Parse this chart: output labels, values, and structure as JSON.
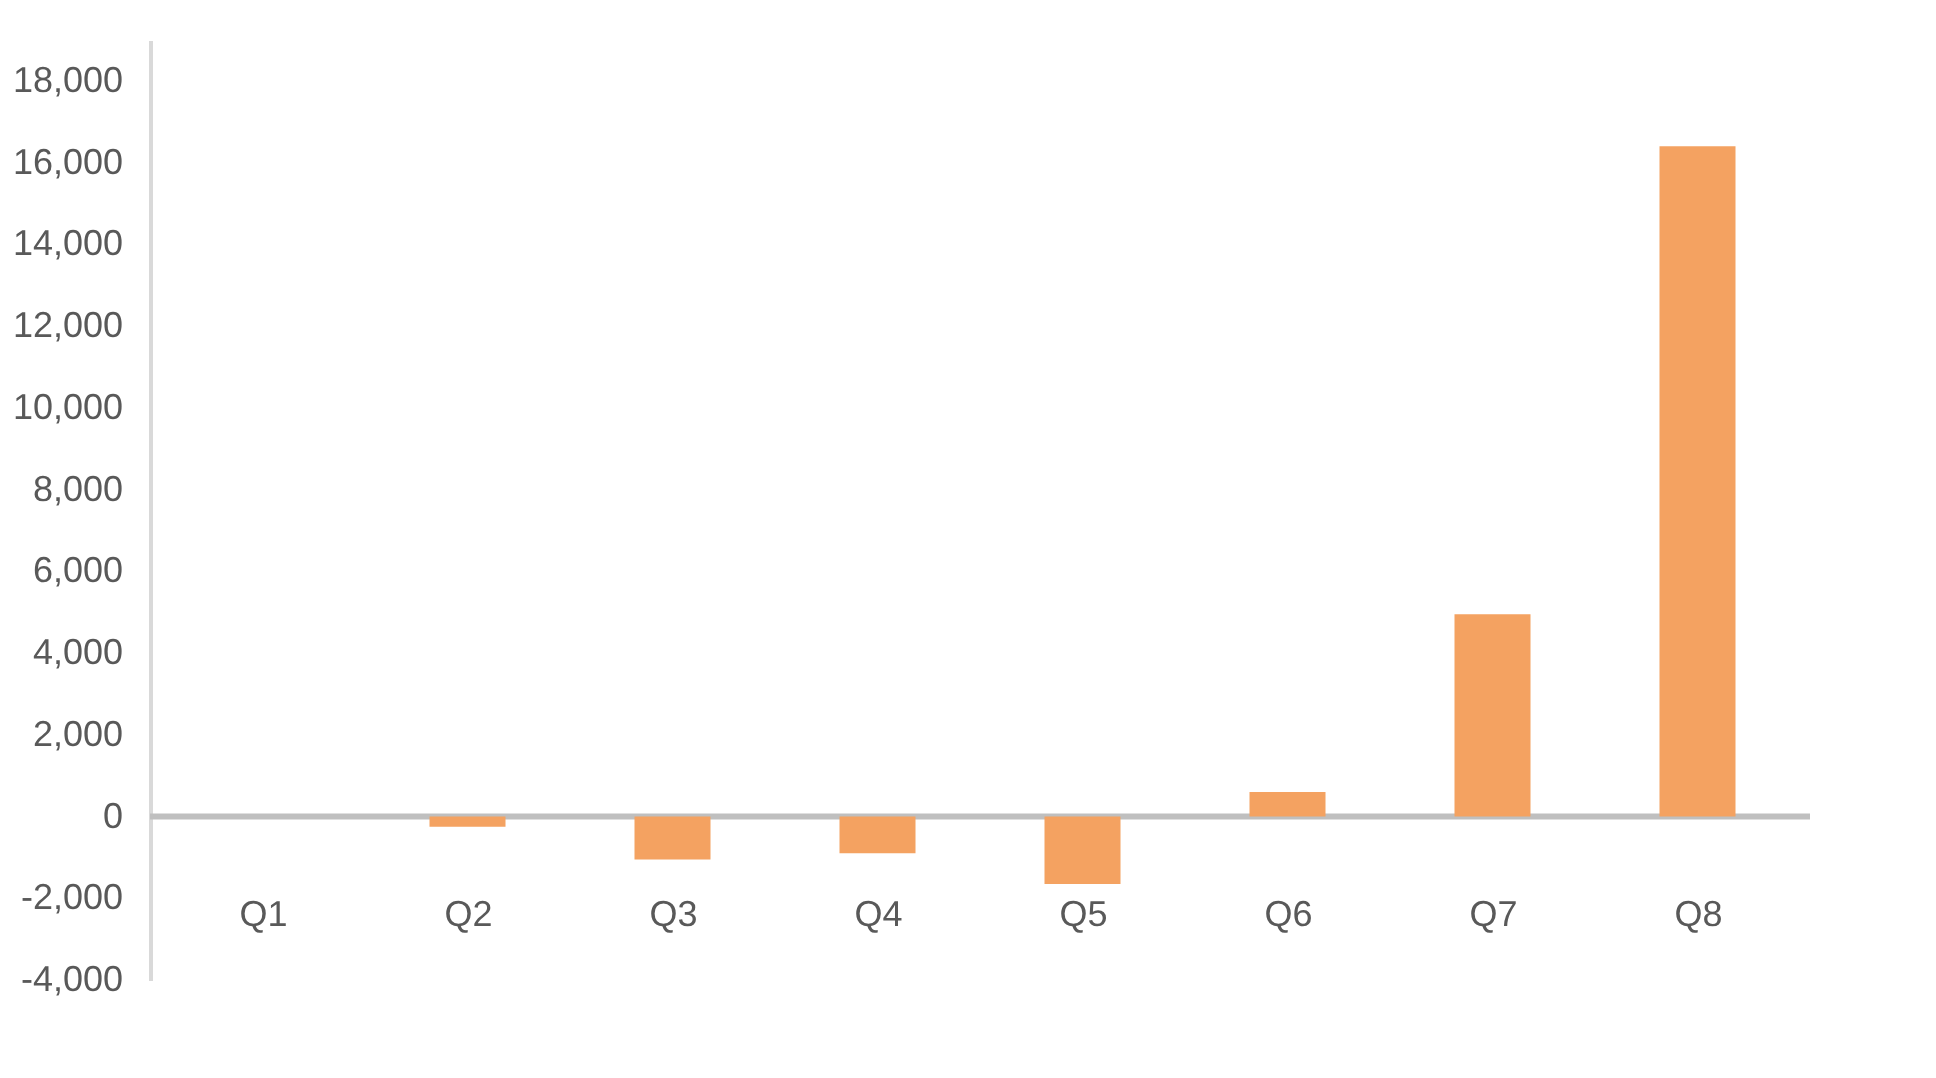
{
  "chart_data": {
    "type": "bar",
    "categories": [
      "Q1",
      "Q2",
      "Q3",
      "Q4",
      "Q5",
      "Q6",
      "Q7",
      "Q8"
    ],
    "series": [
      {
        "color": "#f4a261",
        "values": [
          0,
          -250,
          -1050,
          -900,
          -1650,
          600,
          4950,
          16400
        ]
      }
    ],
    "ylim": [
      -4000,
      19000
    ],
    "yticks": [
      {
        "value": -4000,
        "label": "-4,000"
      },
      {
        "value": -2000,
        "label": "-2,000"
      },
      0,
      {
        "value": 2000,
        "label": "2,000"
      },
      {
        "value": 4000,
        "label": "4,000"
      },
      {
        "value": 6000,
        "label": "6,000"
      },
      {
        "value": 8000,
        "label": "8,000"
      },
      {
        "value": 10000,
        "label": "10,000"
      },
      {
        "value": 12000,
        "label": "12,000"
      },
      {
        "value": 14000,
        "label": "14,000"
      },
      {
        "value": 16000,
        "label": "16,000"
      },
      {
        "value": 18000,
        "label": "18,000"
      }
    ],
    "grid": false,
    "legend": false
  }
}
